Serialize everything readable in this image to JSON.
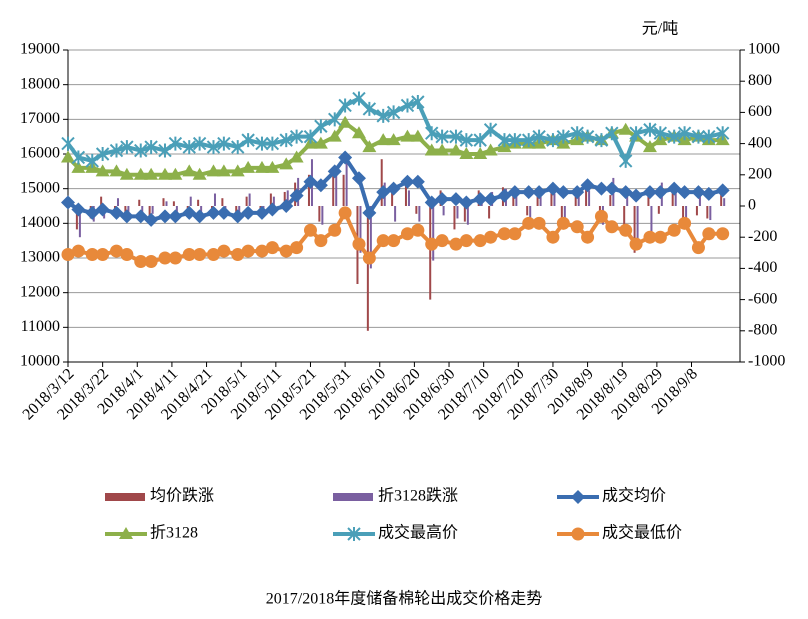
{
  "chart_data": {
    "type": "line",
    "title": "2017/2018年度储备棉轮出成交价格走势",
    "y2_label": "元/吨",
    "x": [
      0,
      3,
      7,
      10,
      14,
      17,
      21,
      24,
      28,
      31,
      35,
      38,
      42,
      45,
      49,
      52,
      56,
      59,
      63,
      66,
      70,
      73,
      77,
      80,
      84,
      87,
      91,
      94,
      98,
      101,
      105,
      108,
      112,
      115,
      119,
      122,
      126,
      129,
      133,
      136,
      140,
      143,
      147,
      150,
      154,
      157,
      161,
      164,
      168,
      171,
      175,
      178,
      182,
      185,
      189
    ],
    "xlim": [
      0,
      194
    ],
    "xticks": [
      {
        "value": 0,
        "label": "2018/3/12"
      },
      {
        "value": 10,
        "label": "2018/3/22"
      },
      {
        "value": 20,
        "label": "2018/4/1"
      },
      {
        "value": 30,
        "label": "2018/4/11"
      },
      {
        "value": 40,
        "label": "2018/4/21"
      },
      {
        "value": 50,
        "label": "2018/5/1"
      },
      {
        "value": 60,
        "label": "2018/5/11"
      },
      {
        "value": 70,
        "label": "2018/5/21"
      },
      {
        "value": 80,
        "label": "2018/5/31"
      },
      {
        "value": 90,
        "label": "2018/6/10"
      },
      {
        "value": 100,
        "label": "2018/6/20"
      },
      {
        "value": 110,
        "label": "2018/6/30"
      },
      {
        "value": 120,
        "label": "2018/7/10"
      },
      {
        "value": 130,
        "label": "2018/7/20"
      },
      {
        "value": 140,
        "label": "2018/7/30"
      },
      {
        "value": 150,
        "label": "2018/8/9"
      },
      {
        "value": 160,
        "label": "2018/8/19"
      },
      {
        "value": 170,
        "label": "2018/8/29"
      },
      {
        "value": 180,
        "label": "2018/9/8"
      }
    ],
    "ylim": [
      10000,
      19000
    ],
    "yticks": [
      10000,
      11000,
      12000,
      13000,
      14000,
      15000,
      16000,
      17000,
      18000,
      19000
    ],
    "y2lim": [
      -1000,
      1000
    ],
    "y2ticks": [
      -1000,
      -800,
      -600,
      -400,
      -200,
      0,
      200,
      400,
      600,
      800,
      1000
    ],
    "grid": true,
    "series": [
      {
        "name": "均价跌涨",
        "type": "bar",
        "axis": "y2",
        "color": "#a0484a",
        "values": [
          0,
          -150,
          -80,
          60,
          -50,
          -60,
          40,
          -90,
          50,
          30,
          -60,
          40,
          -70,
          50,
          -40,
          60,
          -50,
          80,
          90,
          150,
          200,
          -100,
          250,
          200,
          -500,
          -800,
          300,
          100,
          150,
          -50,
          -600,
          100,
          -150,
          -100,
          100,
          -80,
          120,
          80,
          -60,
          70,
          90,
          -120,
          60,
          150,
          -100,
          70,
          -150,
          -300,
          100,
          -50,
          90,
          -100,
          -60,
          -80,
          100
        ]
      },
      {
        "name": "折3128跌涨",
        "type": "bar",
        "axis": "y2",
        "color": "#7a5fa0",
        "values": [
          0,
          -200,
          -100,
          -80,
          50,
          -70,
          -60,
          -50,
          30,
          -40,
          60,
          -50,
          80,
          -40,
          -60,
          80,
          -40,
          60,
          100,
          180,
          300,
          -120,
          200,
          300,
          -300,
          -400,
          150,
          -100,
          100,
          -100,
          -350,
          -60,
          -80,
          -120,
          60,
          90,
          110,
          100,
          -80,
          60,
          80,
          -100,
          80,
          100,
          -120,
          180,
          60,
          -250,
          -200,
          150,
          100,
          -120,
          80,
          -90,
          50
        ]
      },
      {
        "name": "成交均价",
        "type": "line",
        "marker": "diamond",
        "color": "#3a6db0",
        "values": [
          14600,
          14400,
          14300,
          14400,
          14300,
          14200,
          14200,
          14100,
          14200,
          14200,
          14300,
          14200,
          14300,
          14300,
          14200,
          14300,
          14300,
          14400,
          14500,
          14800,
          15200,
          15100,
          15500,
          15900,
          15300,
          14300,
          14900,
          15000,
          15200,
          15200,
          14600,
          14700,
          14700,
          14600,
          14700,
          14700,
          14800,
          14900,
          14900,
          14900,
          15000,
          14900,
          14900,
          15100,
          15000,
          15000,
          14900,
          14800,
          14900,
          14900,
          15000,
          14900,
          14900,
          14850,
          14950
        ]
      },
      {
        "name": "折3128",
        "type": "line",
        "marker": "triangle",
        "color": "#8db04a",
        "values": [
          15900,
          15600,
          15600,
          15500,
          15500,
          15400,
          15400,
          15400,
          15400,
          15400,
          15500,
          15400,
          15500,
          15500,
          15500,
          15600,
          15600,
          15600,
          15700,
          15900,
          16300,
          16300,
          16500,
          16900,
          16600,
          16200,
          16400,
          16400,
          16500,
          16500,
          16100,
          16100,
          16100,
          16000,
          16000,
          16100,
          16200,
          16300,
          16300,
          16300,
          16400,
          16300,
          16400,
          16500,
          16400,
          16600,
          16700,
          16500,
          16200,
          16400,
          16500,
          16400,
          16500,
          16400,
          16400
        ]
      },
      {
        "name": "成交最高价",
        "type": "line",
        "marker": "star",
        "color": "#4a9fb8",
        "values": [
          16300,
          15900,
          15800,
          16000,
          16100,
          16200,
          16100,
          16200,
          16100,
          16300,
          16200,
          16300,
          16200,
          16300,
          16200,
          16400,
          16300,
          16300,
          16400,
          16500,
          16500,
          16800,
          17000,
          17400,
          17600,
          17300,
          17100,
          17200,
          17400,
          17500,
          16600,
          16500,
          16500,
          16400,
          16400,
          16700,
          16400,
          16400,
          16400,
          16500,
          16400,
          16500,
          16600,
          16500,
          16400,
          16600,
          15800,
          16600,
          16700,
          16600,
          16500,
          16600,
          16500,
          16500,
          16600
        ]
      },
      {
        "name": "成交最低价",
        "type": "line",
        "marker": "circle",
        "color": "#e8893a",
        "values": [
          13100,
          13200,
          13100,
          13100,
          13200,
          13100,
          12900,
          12900,
          13000,
          13000,
          13100,
          13100,
          13100,
          13200,
          13100,
          13200,
          13200,
          13300,
          13200,
          13300,
          13800,
          13500,
          13800,
          14300,
          13400,
          13000,
          13500,
          13500,
          13700,
          13800,
          13400,
          13500,
          13400,
          13500,
          13500,
          13600,
          13700,
          13700,
          14000,
          14000,
          13600,
          14000,
          13900,
          13600,
          14200,
          13900,
          13800,
          13400,
          13600,
          13600,
          13800,
          14000,
          13300,
          13700,
          13700
        ]
      }
    ]
  }
}
